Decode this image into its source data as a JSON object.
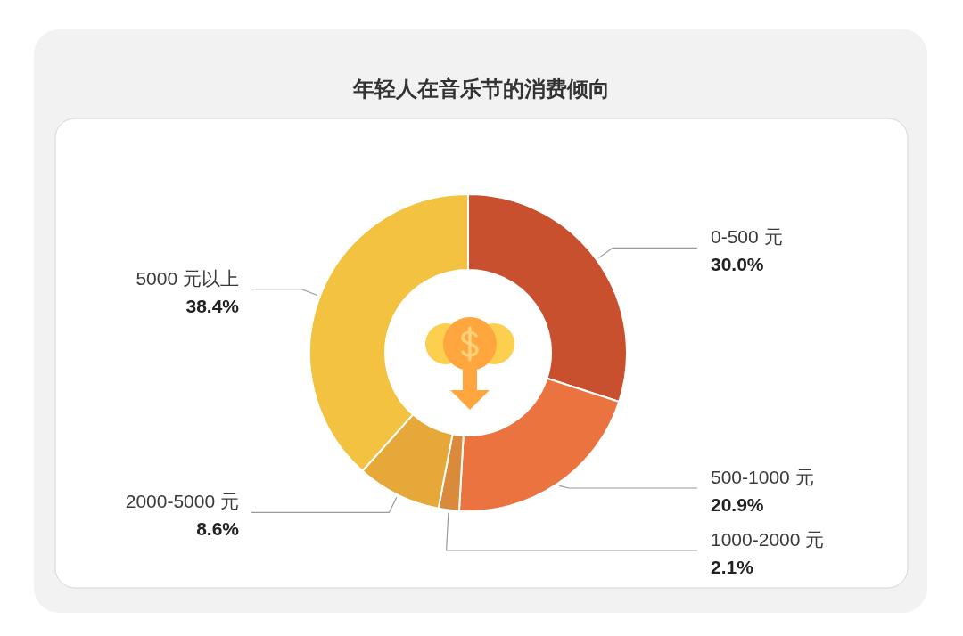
{
  "chart_data": {
    "type": "donut",
    "title": "年轻人在音乐节的消费倾向",
    "categories": [
      "0-500 元",
      "500-1000 元",
      "1000-2000 元",
      "2000-5000 元",
      "5000 元以上"
    ],
    "values": [
      30.0,
      20.9,
      2.1,
      8.6,
      38.4
    ],
    "value_labels": [
      "30.0%",
      "20.9%",
      "2.1%",
      "8.6%",
      "38.4%"
    ],
    "colors": [
      "#c8502e",
      "#ea7340",
      "#d98a3a",
      "#e6a838",
      "#f2c240"
    ]
  }
}
